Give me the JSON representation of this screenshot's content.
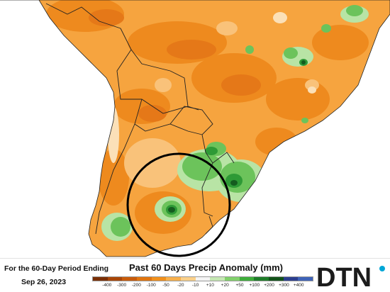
{
  "caption": {
    "line1": "For the 60-Day Period Ending",
    "line2": "Sep 26, 2023"
  },
  "legend": {
    "title": "Past 60 Days Precip Anomaly (mm)",
    "labels": [
      "-400",
      "-300",
      "-200",
      "-100",
      "-50",
      "-20",
      "-10",
      "+10",
      "+20",
      "+50",
      "+100",
      "+200",
      "+300",
      "+400"
    ],
    "colors": [
      "#7a2f05",
      "#a84608",
      "#c85c0c",
      "#e0750f",
      "#f0901d",
      "#f7b04c",
      "#fad08a",
      "#f4f4f4",
      "#c5e8b3",
      "#82d16c",
      "#3fae3b",
      "#1f7d2a",
      "#12531a",
      "#2c3f8f",
      "#3f63b8"
    ]
  },
  "logo": {
    "text": "DTN",
    "colors": {
      "letters": "#1c1c1c",
      "accent": "#00a6d6"
    }
  },
  "map": {
    "icons": {
      "highlight": "highlight-circle",
      "borders": "country-borders"
    },
    "colors": {
      "land_base": "#f6a43f",
      "ocean": "#ffffff",
      "dry_moderate": "#ee8a1e",
      "dry_strong": "#e57818",
      "dry_light": "#f9c27a",
      "near_normal": "#fbe0b8",
      "wet_light": "#b8e4a5",
      "wet_moderate": "#6cc35b",
      "wet_strong": "#2e9a36",
      "wet_extreme": "#145c1f",
      "border": "#222222",
      "circle": "#000000"
    }
  }
}
